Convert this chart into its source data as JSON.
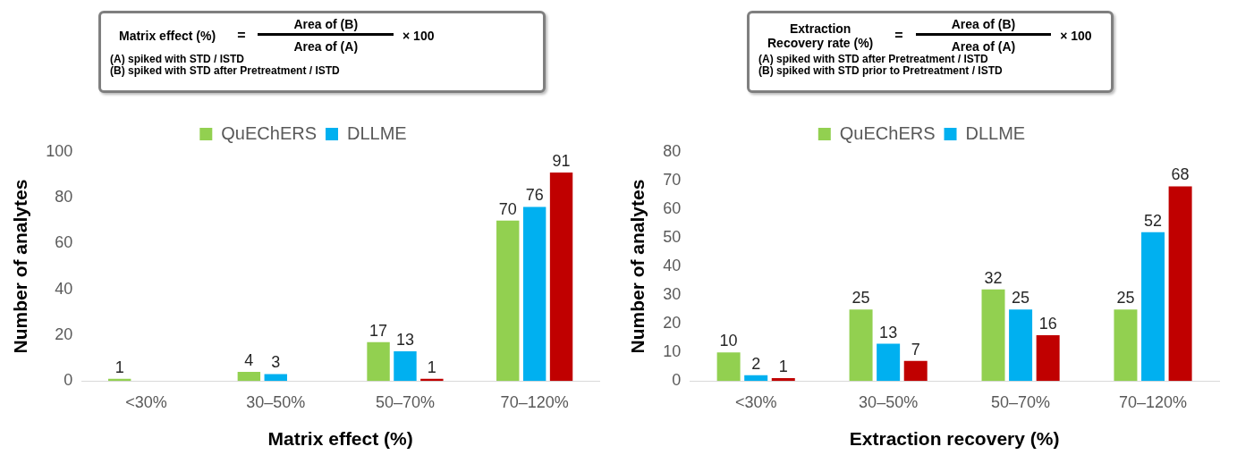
{
  "chart_data": [
    {
      "type": "bar",
      "xlabel": "Matrix effect (%)",
      "ylabel": "Number of analytes",
      "categories": [
        "<30%",
        "30–50%",
        "50–70%",
        "70–120%"
      ],
      "series": [
        {
          "name": "QuEChERS",
          "color": "#92d050",
          "values": [
            1,
            4,
            17,
            70
          ],
          "value_labels": [
            "1",
            "4",
            "17",
            "70"
          ]
        },
        {
          "name": "DLLME",
          "color": "#00b0f0",
          "values": [
            0,
            3,
            13,
            76
          ],
          "value_labels": [
            null,
            "3",
            "13",
            "76"
          ]
        },
        {
          "color": "#c00000",
          "values": [
            0,
            0,
            1,
            91
          ],
          "value_labels": [
            null,
            null,
            "1",
            "91"
          ]
        }
      ],
      "ylim": [
        0,
        100
      ],
      "yticks": [
        0,
        20,
        40,
        60,
        80,
        100
      ],
      "grid": false,
      "legend": "top",
      "annotations": [
        "Matrix effect (%)",
        "=",
        "Area of (B)",
        "Area of (A)",
        "× 100",
        "(A) spiked with STD / ISTD",
        "(B) spiked with STD after Pretreatment / ISTD"
      ]
    },
    {
      "type": "bar",
      "xlabel": "Extraction recovery (%)",
      "ylabel": "Number of analytes",
      "categories": [
        "<30%",
        "30–50%",
        "50–70%",
        "70–120%"
      ],
      "series": [
        {
          "name": "QuEChERS",
          "color": "#92d050",
          "values": [
            10,
            25,
            32,
            25
          ],
          "value_labels": [
            "10",
            "25",
            "32",
            "25"
          ]
        },
        {
          "name": "DLLME",
          "color": "#00b0f0",
          "values": [
            2,
            13,
            25,
            52
          ],
          "value_labels": [
            "2",
            "13",
            "25",
            "52"
          ]
        },
        {
          "color": "#c00000",
          "values": [
            1,
            7,
            16,
            68
          ],
          "value_labels": [
            "1",
            "7",
            "16",
            "68"
          ]
        }
      ],
      "ylim": [
        0,
        80
      ],
      "yticks": [
        0,
        10,
        20,
        30,
        40,
        50,
        60,
        70,
        80
      ],
      "grid": false,
      "legend": "top",
      "annotations": [
        "Extraction\nRecovery rate (%)",
        "=",
        "Area of (B)",
        "Area of (A)",
        "× 100",
        "(A) spiked with STD after Pretreatment / ISTD",
        "(B) spiked with STD prior to Pretreatment / ISTD"
      ]
    }
  ]
}
